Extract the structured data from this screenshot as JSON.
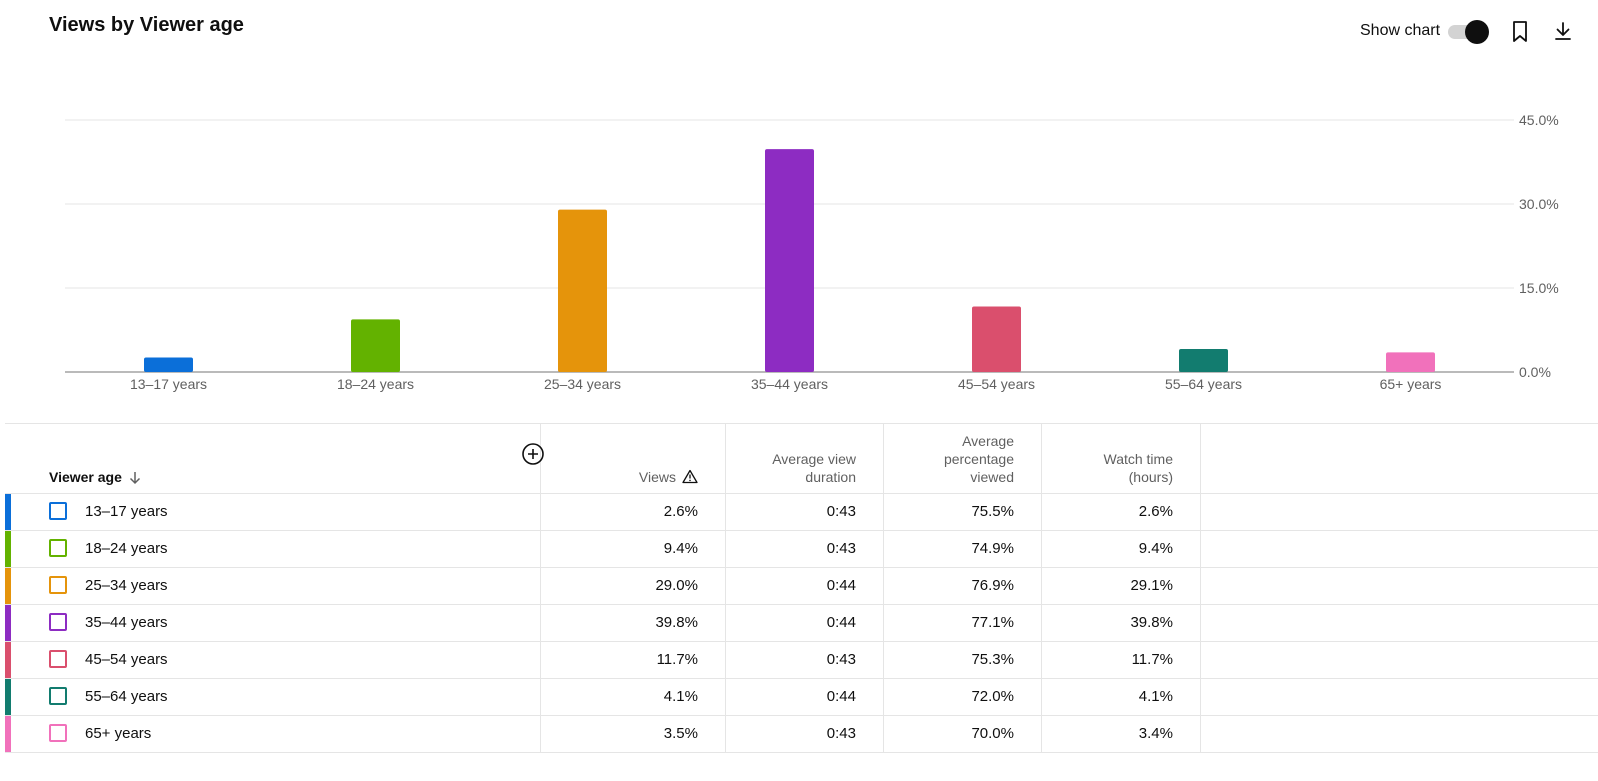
{
  "header": {
    "title": "Views by Viewer age",
    "show_chart_label": "Show chart",
    "show_chart_on": true
  },
  "icons": {
    "bookmark": "bookmark-icon",
    "download": "download-icon",
    "sort": "arrow-down-icon",
    "warning": "warning-triangle-icon",
    "add_column": "add-circle-icon"
  },
  "chart_data": {
    "type": "bar",
    "categories": [
      "13–17 years",
      "18–24 years",
      "25–34 years",
      "35–44 years",
      "45–54 years",
      "55–64 years",
      "65+ years"
    ],
    "values": [
      2.6,
      9.4,
      29.0,
      39.8,
      11.7,
      4.1,
      3.5
    ],
    "colors": [
      "#0b6fd9",
      "#63b200",
      "#e5940b",
      "#8d2cc2",
      "#da4f6d",
      "#127c6f",
      "#f171bb"
    ],
    "yticks": [
      "0.0%",
      "15.0%",
      "30.0%",
      "45.0%"
    ],
    "ylim": [
      0,
      45
    ],
    "grid": true
  },
  "table": {
    "columns": {
      "viewer_age": "Viewer age",
      "views": "Views",
      "avg_view_duration": "Average view\nduration",
      "avg_pct_viewed": "Average\npercentage\nviewed",
      "watch_time": "Watch time\n(hours)"
    },
    "rows": [
      {
        "age": "13–17 years",
        "views": "2.6%",
        "avd": "0:43",
        "apv": "75.5%",
        "wt": "2.6%",
        "color": "#0b6fd9"
      },
      {
        "age": "18–24 years",
        "views": "9.4%",
        "avd": "0:43",
        "apv": "74.9%",
        "wt": "9.4%",
        "color": "#63b200"
      },
      {
        "age": "25–34 years",
        "views": "29.0%",
        "avd": "0:44",
        "apv": "76.9%",
        "wt": "29.1%",
        "color": "#e5940b"
      },
      {
        "age": "35–44 years",
        "views": "39.8%",
        "avd": "0:44",
        "apv": "77.1%",
        "wt": "39.8%",
        "color": "#8d2cc2"
      },
      {
        "age": "45–54 years",
        "views": "11.7%",
        "avd": "0:43",
        "apv": "75.3%",
        "wt": "11.7%",
        "color": "#da4f6d"
      },
      {
        "age": "55–64 years",
        "views": "4.1%",
        "avd": "0:44",
        "apv": "72.0%",
        "wt": "4.1%",
        "color": "#127c6f"
      },
      {
        "age": "65+ years",
        "views": "3.5%",
        "avd": "0:43",
        "apv": "70.0%",
        "wt": "3.4%",
        "color": "#f171bb"
      }
    ]
  }
}
